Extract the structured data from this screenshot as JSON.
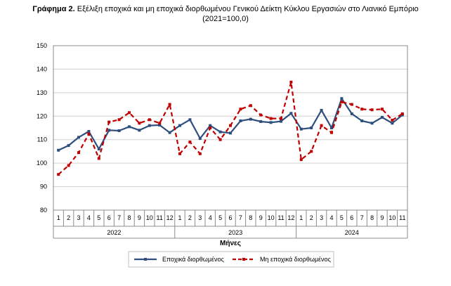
{
  "title_prefix": "Γράφημα 2.",
  "title_main": "Εξέλιξη εποχικά και μη εποχικά διορθωμένου Γενικού Δείκτη Κύκλου Εργασιών στο Λιανικό Εμπόριο",
  "title_sub": "(2021=100,0)",
  "chart_data": {
    "type": "line",
    "xlabel": "Μήνες",
    "ylabel": "",
    "ylim": [
      80,
      150
    ],
    "yticks": [
      80,
      90,
      100,
      110,
      120,
      130,
      140,
      150
    ],
    "grid": true,
    "legend_position": "bottom",
    "months": [
      "1",
      "2",
      "3",
      "4",
      "5",
      "6",
      "7",
      "8",
      "9",
      "10",
      "11",
      "12",
      "1",
      "2",
      "3",
      "4",
      "5",
      "6",
      "7",
      "8",
      "9",
      "10",
      "11",
      "12",
      "1",
      "2",
      "3",
      "4",
      "5",
      "6",
      "7",
      "8",
      "9",
      "10",
      "11"
    ],
    "years": [
      {
        "label": "2022",
        "count": 12
      },
      {
        "label": "2023",
        "count": 12
      },
      {
        "label": "2024",
        "count": 11
      }
    ],
    "series": [
      {
        "name": "Εποχικά διορθωμένος",
        "color": "#2e4e7e",
        "style": "solid-square-markers",
        "values": [
          105.5,
          107.5,
          111,
          113.5,
          106,
          114,
          113.8,
          115.5,
          114,
          116,
          116.2,
          113,
          116,
          118.5,
          110.5,
          116,
          113.3,
          112.8,
          118,
          118.7,
          117.7,
          117.3,
          117.8,
          121.2,
          114.5,
          115,
          122.5,
          115,
          127.5,
          121,
          118,
          117,
          119.5,
          117,
          120.5
        ]
      },
      {
        "name": "Μη εποχικά διορθωμένος",
        "color": "#c00000",
        "style": "dashed-square-markers",
        "values": [
          95.2,
          99,
          104.5,
          112.5,
          102,
          117.5,
          118.5,
          121.5,
          117,
          118.5,
          117,
          125,
          104,
          109,
          104,
          115,
          110,
          116,
          123,
          124.5,
          120.5,
          119,
          119,
          134.5,
          101.5,
          105,
          116,
          113,
          126,
          125,
          123,
          122.7,
          123,
          118.3,
          121
        ]
      }
    ]
  }
}
